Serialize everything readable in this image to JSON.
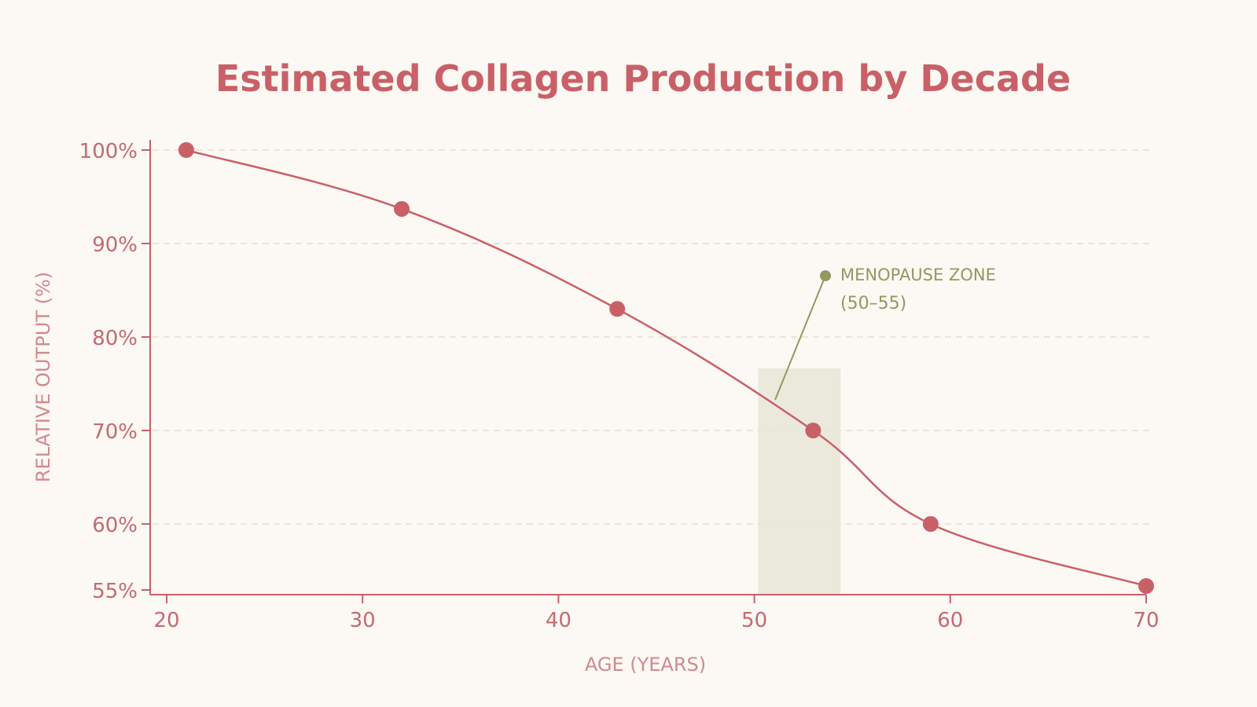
{
  "chart_data": {
    "type": "line",
    "title": "Estimated Collagen Production by Decade",
    "xlabel": "AGE (YEARS)",
    "ylabel": "RELATIVE OUTPUT (%)",
    "x_ticks": [
      "20",
      "30",
      "40",
      "50",
      "60",
      "70"
    ],
    "y_ticks": [
      "55%",
      "60%",
      "70%",
      "80%",
      "90%",
      "100%"
    ],
    "y_tick_values": [
      55,
      60,
      70,
      80,
      90,
      100
    ],
    "xlim": [
      20,
      70
    ],
    "ylim": [
      55,
      100
    ],
    "grid": true,
    "series": [
      {
        "x": [
          21,
          32,
          43,
          53,
          59,
          70
        ],
        "y": [
          100,
          93.7,
          83,
          70,
          60,
          55.3
        ]
      }
    ],
    "annotation": {
      "title": "MENOPAUSE ZONE",
      "subtitle": "(50–55)",
      "x_range": [
        50,
        55
      ]
    },
    "colors": {
      "series": "#c96068",
      "annotation": "#8f9a60",
      "zone": "#e8e6d7",
      "background": "#fcf8f3"
    }
  }
}
